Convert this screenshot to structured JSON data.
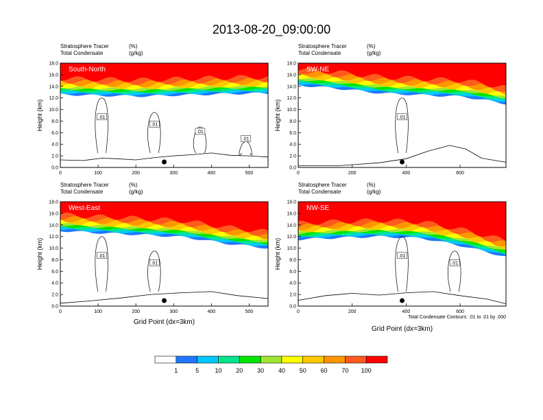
{
  "title": "2013-08-20_09:00:00",
  "footnote": "Total Condensate Contours: .01 to .01 by .000",
  "xlabel": "Grid Point (dx=3km)",
  "colors": {
    "levels": [
      "#ffffff",
      "#1e78ff",
      "#00c8ff",
      "#00e68c",
      "#00e600",
      "#a0e632",
      "#ffff00",
      "#ffc800",
      "#ff9600",
      "#ff5a1e",
      "#ff0000"
    ],
    "contour": "#000000",
    "dot": "#000000"
  },
  "chart_data": [
    {
      "type": "heatmap",
      "panel_label": "South-North",
      "subtitle_left_1": "Stratosphere Tracer",
      "subtitle_right_1": "(%)",
      "subtitle_left_2": "Total Condensate",
      "subtitle_right_2": "(g/kg)",
      "ylabel": "Height (km)",
      "xlabel": "",
      "xlim": [
        0,
        550
      ],
      "ylim": [
        0,
        18
      ],
      "xticks": [
        0,
        100,
        200,
        300,
        400,
        500
      ],
      "yticks": [
        "0.0",
        "2.0",
        "4.0",
        "6.0",
        "8.0",
        "10.0",
        "12.0",
        "14.0",
        "16.0",
        "18.0"
      ],
      "tropopause_base_km": [
        12.6,
        12.4,
        12.3,
        12.5,
        12.7,
        12.8
      ],
      "contour_labels": [
        ".01",
        ".01",
        ".01",
        ".01"
      ],
      "marker_x": 275,
      "terrain_km": [
        [
          0,
          1.3
        ],
        [
          60,
          1.2
        ],
        [
          110,
          1.6
        ],
        [
          150,
          1.5
        ],
        [
          200,
          1.3
        ],
        [
          250,
          1.7
        ],
        [
          300,
          2.0
        ],
        [
          350,
          2.2
        ],
        [
          400,
          2.5
        ],
        [
          450,
          2.1
        ],
        [
          500,
          2.0
        ],
        [
          550,
          1.8
        ]
      ]
    },
    {
      "type": "heatmap",
      "panel_label": "SW-NE",
      "subtitle_left_1": "Stratosphere Tracer",
      "subtitle_right_1": "(%)",
      "subtitle_left_2": "Total Condensate",
      "subtitle_right_2": "(g/kg)",
      "ylabel": "Height (km)",
      "xlabel": "",
      "xlim": [
        0,
        770
      ],
      "ylim": [
        0,
        18
      ],
      "xticks": [
        0,
        200,
        400,
        600
      ],
      "yticks": [
        "0.0",
        "2.0",
        "4.0",
        "6.0",
        "8.0",
        "10.0",
        "12.0",
        "14.0",
        "16.0",
        "18.0"
      ],
      "tropopause_base_km": [
        14.2,
        13.6,
        12.8,
        12.5,
        12.2,
        11.0
      ],
      "contour_labels": [
        ".01"
      ],
      "marker_x": 385,
      "terrain_km": [
        [
          0,
          0.3
        ],
        [
          150,
          0.3
        ],
        [
          300,
          0.8
        ],
        [
          400,
          1.5
        ],
        [
          480,
          2.8
        ],
        [
          560,
          3.8
        ],
        [
          620,
          3.2
        ],
        [
          680,
          1.6
        ],
        [
          770,
          0.9
        ]
      ]
    },
    {
      "type": "heatmap",
      "panel_label": "West-East",
      "subtitle_left_1": "Stratosphere Tracer",
      "subtitle_right_1": "(%)",
      "subtitle_left_2": "Total Condensate",
      "subtitle_right_2": "(g/kg)",
      "ylabel": "Height (km)",
      "xlabel": "Grid Point (dx=3km)",
      "xlim": [
        0,
        550
      ],
      "ylim": [
        0,
        18
      ],
      "xticks": [
        0,
        100,
        200,
        300,
        400,
        500
      ],
      "yticks": [
        "0.0",
        "2.0",
        "4.0",
        "6.0",
        "8.0",
        "10.0",
        "12.0",
        "14.0",
        "16.0",
        "18.0"
      ],
      "tropopause_base_km": [
        13.0,
        12.6,
        12.3,
        11.9,
        10.8,
        10.0
      ],
      "contour_labels": [
        ".01",
        ".01"
      ],
      "marker_x": 275,
      "terrain_km": [
        [
          0,
          0.5
        ],
        [
          80,
          0.9
        ],
        [
          160,
          1.4
        ],
        [
          240,
          2.0
        ],
        [
          320,
          2.3
        ],
        [
          400,
          2.5
        ],
        [
          470,
          1.8
        ],
        [
          550,
          1.3
        ]
      ]
    },
    {
      "type": "heatmap",
      "panel_label": "NW-SE",
      "subtitle_left_1": "Stratosphere Tracer",
      "subtitle_right_1": "(%)",
      "subtitle_left_2": "Total Condensate",
      "subtitle_right_2": "(g/kg)",
      "ylabel": "Height (km)",
      "xlabel": "Grid Point (dx=3km)",
      "xlim": [
        0,
        770
      ],
      "ylim": [
        0,
        18
      ],
      "xticks": [
        0,
        200,
        400,
        600
      ],
      "yticks": [
        "0.0",
        "2.0",
        "4.0",
        "6.0",
        "8.0",
        "10.0",
        "12.0",
        "14.0",
        "16.0",
        "18.0"
      ],
      "tropopause_base_km": [
        11.5,
        11.8,
        12.0,
        11.7,
        10.3,
        8.5
      ],
      "contour_labels": [
        ".01",
        ".01"
      ],
      "marker_x": 385,
      "terrain_km": [
        [
          0,
          1.0
        ],
        [
          100,
          1.8
        ],
        [
          200,
          2.2
        ],
        [
          300,
          1.9
        ],
        [
          400,
          2.3
        ],
        [
          500,
          2.5
        ],
        [
          600,
          1.8
        ],
        [
          700,
          1.2
        ],
        [
          770,
          0.4
        ]
      ]
    }
  ],
  "colorbar": {
    "labels": [
      "1",
      "5",
      "10",
      "20",
      "30",
      "40",
      "50",
      "60",
      "70",
      "100"
    ]
  }
}
